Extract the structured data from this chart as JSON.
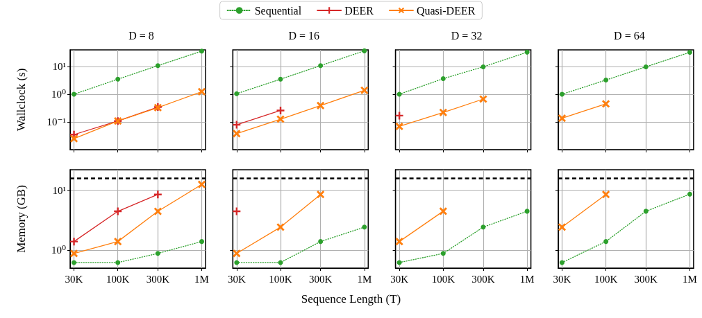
{
  "chart_data": [
    {
      "type": "line",
      "title": "D = 8",
      "ylabel": "Wallclock (s)",
      "x": [
        30000,
        100000,
        300000,
        1000000
      ],
      "log": "xy",
      "grid": true,
      "legend": "top",
      "tick_labels": "y",
      "xlim": [
        27000,
        1110000
      ],
      "ylim": [
        0.01,
        40
      ],
      "xticks": [
        {
          "value": 30000,
          "label": null
        },
        {
          "value": 100000,
          "label": null
        },
        {
          "value": 300000,
          "label": null
        },
        {
          "value": 1000000,
          "label": null
        }
      ],
      "yticks": [
        {
          "value": 0.1,
          "label": "10⁻¹"
        },
        {
          "value": 1,
          "label": "10⁰"
        },
        {
          "value": 10,
          "label": "10¹"
        }
      ],
      "series": [
        {
          "name": "Sequential",
          "color": "#2ca02c",
          "marker": "circle",
          "line_style": "dotted",
          "values": [
            1.0,
            3.5,
            10.8,
            36
          ]
        },
        {
          "name": "DEER",
          "color": "#d62728",
          "marker": "cross",
          "line_style": "solid",
          "values": [
            0.035,
            0.108,
            0.345,
            null
          ]
        },
        {
          "name": "Quasi-DEER",
          "color": "#ff7f0e",
          "marker": "x",
          "line_style": "solid",
          "values": [
            0.025,
            0.108,
            0.33,
            1.24
          ]
        }
      ]
    },
    {
      "type": "line",
      "title": "D = 16",
      "x": [
        30000,
        100000,
        300000,
        1000000
      ],
      "log": "xy",
      "grid": true,
      "tick_labels": false,
      "xlim": [
        27000,
        1110000
      ],
      "ylim": [
        0.01,
        40
      ],
      "xticks": [
        {
          "value": 30000,
          "label": null
        },
        {
          "value": 100000,
          "label": null
        },
        {
          "value": 300000,
          "label": null
        },
        {
          "value": 1000000,
          "label": null
        }
      ],
      "yticks": [
        {
          "value": 0.1,
          "label": null
        },
        {
          "value": 1,
          "label": null
        },
        {
          "value": 10,
          "label": null
        }
      ],
      "series": [
        {
          "color": "#2ca02c",
          "marker": "circle",
          "line_style": "dotted",
          "values": [
            1.05,
            3.5,
            10.8,
            37
          ]
        },
        {
          "color": "#d62728",
          "marker": "cross",
          "line_style": "solid",
          "values": [
            0.079,
            0.26,
            null,
            null
          ]
        },
        {
          "color": "#ff7f0e",
          "marker": "x",
          "line_style": "solid",
          "values": [
            0.038,
            0.126,
            0.39,
            1.39
          ]
        }
      ]
    },
    {
      "type": "line",
      "title": "D = 32",
      "x": [
        30000,
        100000,
        300000,
        1000000
      ],
      "log": "xy",
      "grid": true,
      "tick_labels": false,
      "xlim": [
        27000,
        1110000
      ],
      "ylim": [
        0.01,
        40
      ],
      "xticks": [
        {
          "value": 30000,
          "label": null
        },
        {
          "value": 100000,
          "label": null
        },
        {
          "value": 300000,
          "label": null
        },
        {
          "value": 1000000,
          "label": null
        }
      ],
      "yticks": [
        {
          "value": 0.1,
          "label": null
        },
        {
          "value": 1,
          "label": null
        },
        {
          "value": 10,
          "label": null
        }
      ],
      "series": [
        {
          "color": "#2ca02c",
          "marker": "circle",
          "line_style": "dotted",
          "values": [
            1.0,
            3.66,
            9.8,
            33
          ]
        },
        {
          "color": "#d62728",
          "marker": "cross",
          "line_style": "solid",
          "values": [
            0.169,
            null,
            null,
            null
          ]
        },
        {
          "color": "#ff7f0e",
          "marker": "x",
          "line_style": "solid",
          "values": [
            0.069,
            0.22,
            0.67,
            null
          ]
        }
      ]
    },
    {
      "type": "line",
      "title": "D = 64",
      "x": [
        30000,
        100000,
        300000,
        1000000
      ],
      "log": "xy",
      "grid": true,
      "tick_labels": false,
      "xlim": [
        27000,
        1110000
      ],
      "ylim": [
        0.01,
        40
      ],
      "xticks": [
        {
          "value": 30000,
          "label": null
        },
        {
          "value": 100000,
          "label": null
        },
        {
          "value": 300000,
          "label": null
        },
        {
          "value": 1000000,
          "label": null
        }
      ],
      "yticks": [
        {
          "value": 0.1,
          "label": null
        },
        {
          "value": 1,
          "label": null
        },
        {
          "value": 10,
          "label": null
        }
      ],
      "series": [
        {
          "color": "#2ca02c",
          "marker": "circle",
          "line_style": "dotted",
          "values": [
            1.0,
            3.26,
            9.8,
            32.6
          ]
        },
        {
          "color": "#ff7f0e",
          "marker": "x",
          "line_style": "solid",
          "values": [
            0.136,
            0.45,
            null,
            null
          ]
        }
      ]
    },
    {
      "type": "line",
      "ylabel": "Memory (GB)",
      "x": [
        30000,
        100000,
        300000,
        1000000
      ],
      "log": "xy",
      "grid": true,
      "xlim": [
        27000,
        1110000
      ],
      "ylim": [
        0.5,
        22
      ],
      "xticks": [
        {
          "value": 30000,
          "label": "30K"
        },
        {
          "value": 100000,
          "label": "100K"
        },
        {
          "value": 300000,
          "label": "300K"
        },
        {
          "value": 1000000,
          "label": "1M"
        }
      ],
      "yticks": [
        {
          "value": 1,
          "label": "10⁰"
        },
        {
          "value": 10,
          "label": "10¹"
        }
      ],
      "ref_lines": [
        {
          "axis": "y",
          "value": 16,
          "color": "#000000",
          "line_style": "dashed"
        }
      ],
      "series": [
        {
          "color": "#2ca02c",
          "marker": "circle",
          "line_style": "dotted",
          "values": [
            0.62,
            0.62,
            0.88,
            1.39
          ]
        },
        {
          "color": "#d62728",
          "marker": "cross",
          "line_style": "solid",
          "values": [
            1.39,
            4.44,
            8.5,
            null
          ]
        },
        {
          "color": "#ff7f0e",
          "marker": "x",
          "line_style": "solid",
          "values": [
            0.88,
            1.39,
            4.44,
            12.5
          ]
        }
      ]
    },
    {
      "type": "line",
      "xlabel": "Sequence Length (T)",
      "x": [
        30000,
        100000,
        300000,
        1000000
      ],
      "log": "xy",
      "grid": true,
      "tick_labels": "x",
      "xlim": [
        27000,
        1110000
      ],
      "ylim": [
        0.5,
        22
      ],
      "xticks": [
        {
          "value": 30000,
          "label": "30K"
        },
        {
          "value": 100000,
          "label": "100K"
        },
        {
          "value": 300000,
          "label": "300K"
        },
        {
          "value": 1000000,
          "label": "1M"
        }
      ],
      "yticks": [
        {
          "value": 1,
          "label": null
        },
        {
          "value": 10,
          "label": null
        }
      ],
      "ref_lines": [
        {
          "axis": "y",
          "value": 16,
          "color": "#000000",
          "line_style": "dashed"
        }
      ],
      "series": [
        {
          "color": "#2ca02c",
          "marker": "circle",
          "line_style": "dotted",
          "values": [
            0.62,
            0.62,
            1.39,
            2.42
          ]
        },
        {
          "color": "#d62728",
          "marker": "cross",
          "line_style": "solid",
          "values": [
            4.44,
            null,
            null,
            null
          ]
        },
        {
          "color": "#ff7f0e",
          "marker": "x",
          "line_style": "solid",
          "values": [
            0.88,
            2.42,
            8.5,
            null
          ]
        }
      ]
    },
    {
      "type": "line",
      "x": [
        30000,
        100000,
        300000,
        1000000
      ],
      "log": "xy",
      "grid": true,
      "tick_labels": "x",
      "xlim": [
        27000,
        1110000
      ],
      "ylim": [
        0.5,
        22
      ],
      "xticks": [
        {
          "value": 30000,
          "label": "30K"
        },
        {
          "value": 100000,
          "label": "100K"
        },
        {
          "value": 300000,
          "label": "300K"
        },
        {
          "value": 1000000,
          "label": "1M"
        }
      ],
      "yticks": [
        {
          "value": 1,
          "label": null
        },
        {
          "value": 10,
          "label": null
        }
      ],
      "ref_lines": [
        {
          "axis": "y",
          "value": 16,
          "color": "#000000",
          "line_style": "dashed"
        }
      ],
      "series": [
        {
          "color": "#2ca02c",
          "marker": "circle",
          "line_style": "dotted",
          "values": [
            0.62,
            0.88,
            2.42,
            4.46
          ]
        },
        {
          "color": "#ff7f0e",
          "marker": "x",
          "line_style": "solid",
          "values": [
            1.39,
            4.46,
            null,
            null
          ]
        }
      ]
    },
    {
      "type": "line",
      "x": [
        30000,
        100000,
        300000,
        1000000
      ],
      "log": "xy",
      "grid": true,
      "tick_labels": "x",
      "xlim": [
        27000,
        1110000
      ],
      "ylim": [
        0.5,
        22
      ],
      "xticks": [
        {
          "value": 30000,
          "label": "30K"
        },
        {
          "value": 100000,
          "label": "100K"
        },
        {
          "value": 300000,
          "label": "300K"
        },
        {
          "value": 1000000,
          "label": "1M"
        }
      ],
      "yticks": [
        {
          "value": 1,
          "label": null
        },
        {
          "value": 10,
          "label": null
        }
      ],
      "ref_lines": [
        {
          "axis": "y",
          "value": 16,
          "color": "#000000",
          "line_style": "dashed"
        }
      ],
      "series": [
        {
          "color": "#2ca02c",
          "marker": "circle",
          "line_style": "dotted",
          "values": [
            0.62,
            1.39,
            4.46,
            8.6
          ]
        },
        {
          "color": "#ff7f0e",
          "marker": "x",
          "line_style": "solid",
          "values": [
            2.42,
            8.5,
            null,
            null
          ]
        }
      ]
    }
  ]
}
